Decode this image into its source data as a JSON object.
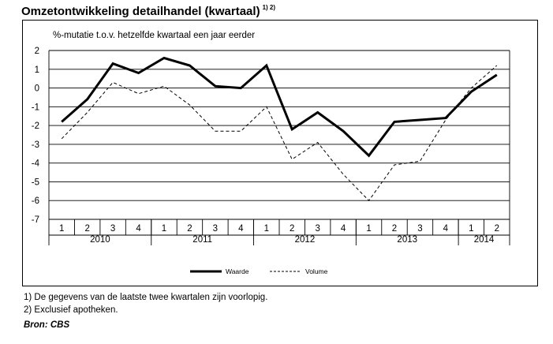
{
  "title": "Omzetontwikkeling detailhandel (kwartaal)",
  "title_note": "1) 2)",
  "footnotes": [
    "1) De gegevens van de laatste twee kwartalen zijn voorlopig.",
    "2) Exclusief apotheken."
  ],
  "source": "Bron: CBS",
  "chart_data": {
    "type": "line",
    "ylabel": "%-mutatie  t.o.v. hetzelfde kwartaal een jaar eerder",
    "ylim": [
      -7,
      2
    ],
    "yticks": [
      "2",
      "1",
      "0",
      "-1",
      "-2",
      "-3",
      "-4",
      "-5",
      "-6",
      "-7"
    ],
    "grid": true,
    "categories": [
      "1",
      "2",
      "3",
      "4",
      "1",
      "2",
      "3",
      "4",
      "1",
      "2",
      "3",
      "4",
      "1",
      "2",
      "3",
      "4",
      "1",
      "2"
    ],
    "years": [
      {
        "label": "2010",
        "count": 4
      },
      {
        "label": "2011",
        "count": 4
      },
      {
        "label": "2012",
        "count": 4
      },
      {
        "label": "2013",
        "count": 4
      },
      {
        "label": "2014",
        "count": 2
      }
    ],
    "legend_position": "bottom",
    "series": [
      {
        "name": "Waarde",
        "style": "solid",
        "values": [
          -1.8,
          -0.6,
          1.3,
          0.8,
          1.6,
          1.2,
          0.1,
          0.0,
          1.2,
          -2.2,
          -1.3,
          -2.3,
          -3.6,
          -1.8,
          -1.7,
          -1.6,
          -0.2,
          0.7
        ]
      },
      {
        "name": "Volume",
        "style": "dashed",
        "values": [
          -2.7,
          -1.3,
          0.3,
          -0.3,
          0.1,
          -0.9,
          -2.3,
          -2.3,
          -1.0,
          -3.8,
          -2.9,
          -4.6,
          -6.0,
          -4.1,
          -3.9,
          -1.7,
          0.0,
          1.2
        ]
      }
    ]
  }
}
